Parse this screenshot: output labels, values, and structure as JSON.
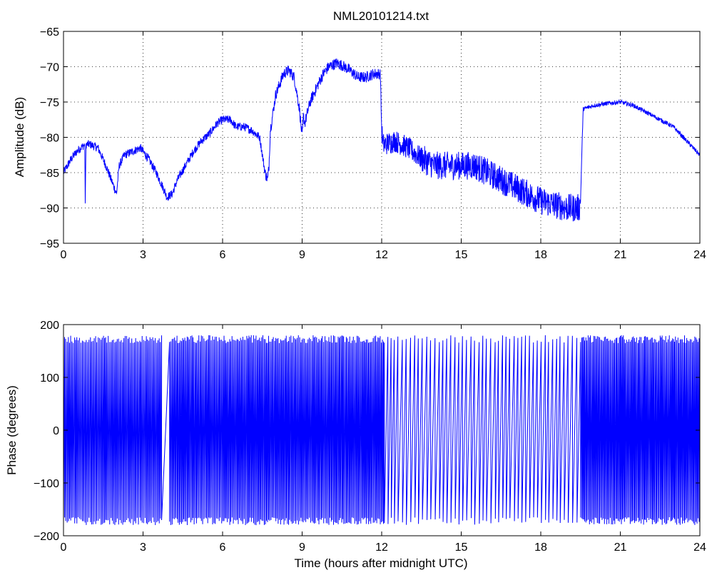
{
  "figure": {
    "title": "NML20101214.txt"
  },
  "chart_data": [
    {
      "type": "line",
      "title": "NML20101214.txt",
      "xlabel": "",
      "ylabel": "Amplitude (dB)",
      "xlim": [
        0,
        24
      ],
      "ylim": [
        -95,
        -65
      ],
      "xticks": [
        0,
        3,
        6,
        9,
        12,
        15,
        18,
        21,
        24
      ],
      "xtick_labels": [
        "0",
        "3",
        "6",
        "9",
        "12",
        "15",
        "18",
        "21",
        "24"
      ],
      "yticks": [
        -95,
        -90,
        -85,
        -80,
        -75,
        -70,
        -65
      ],
      "ytick_labels": [
        "−95",
        "−90",
        "−85",
        "−80",
        "−75",
        "−70",
        "−65"
      ],
      "grid": true,
      "color": "#0000ff",
      "series": [
        {
          "x": [
            0,
            0.3,
            0.5,
            0.8,
            0.82,
            0.85,
            1.0,
            1.3,
            1.6,
            1.9,
            2.0,
            2.1,
            2.3,
            2.6,
            2.9,
            3.2,
            3.5,
            3.8,
            3.9,
            4.1,
            4.3,
            4.6,
            4.9,
            5.2,
            5.5,
            5.8,
            6.0,
            6.3,
            6.5,
            6.8,
            7.1,
            7.4,
            7.6,
            7.7,
            7.75,
            7.8,
            8.0,
            8.3,
            8.5,
            8.7,
            8.9,
            9.0,
            9.05,
            9.1,
            9.3,
            9.6,
            9.8,
            10.0,
            10.3,
            10.5,
            10.8,
            11.1,
            11.4,
            11.7,
            11.95,
            12.0,
            12.05,
            12.1,
            12.5,
            13.0,
            13.5,
            14.0,
            14.5,
            15.0,
            15.5,
            16.0,
            16.5,
            17.0,
            17.5,
            18.0,
            18.5,
            19.0,
            19.45,
            19.5,
            19.55,
            19.6,
            20.0,
            20.5,
            21.0,
            21.5,
            22.0,
            22.5,
            23.0,
            23.5,
            24.0
          ],
          "y": [
            -85,
            -83,
            -82,
            -81,
            -89,
            -81,
            -81,
            -81.5,
            -84,
            -87,
            -88,
            -84,
            -82.5,
            -82,
            -81.5,
            -83,
            -85,
            -87.5,
            -88.5,
            -88,
            -86,
            -84,
            -82,
            -80.5,
            -79.5,
            -78,
            -77.5,
            -77.5,
            -78.5,
            -78.5,
            -79,
            -80,
            -85,
            -86,
            -84,
            -79,
            -74,
            -71,
            -70.5,
            -71.5,
            -76,
            -80,
            -77,
            -78,
            -75,
            -72.5,
            -71,
            -70,
            -69.5,
            -69.8,
            -70.5,
            -71.5,
            -71.5,
            -71,
            -71,
            -79,
            -81,
            -81,
            -80.5,
            -81.5,
            -83,
            -84,
            -84,
            -84,
            -84,
            -85,
            -86,
            -87,
            -88,
            -89,
            -89.5,
            -90,
            -90,
            -89,
            -82,
            -76,
            -75.5,
            -75.2,
            -75,
            -75.5,
            -76.5,
            -77.5,
            -78.5,
            -80.5,
            -82.5
          ]
        }
      ]
    },
    {
      "type": "line",
      "title": "",
      "xlabel": "Time (hours after midnight UTC)",
      "ylabel": "Phase (degrees)",
      "xlim": [
        0,
        24
      ],
      "ylim": [
        -200,
        200
      ],
      "xticks": [
        0,
        3,
        6,
        9,
        12,
        15,
        18,
        21,
        24
      ],
      "xtick_labels": [
        "0",
        "3",
        "6",
        "9",
        "12",
        "15",
        "18",
        "21",
        "24"
      ],
      "yticks": [
        -200,
        -100,
        0,
        100,
        200
      ],
      "ytick_labels": [
        "−200",
        "−100",
        "0",
        "100",
        "200"
      ],
      "grid": false,
      "color": "#0000ff",
      "series": [
        {
          "description_segments": [
            {
              "x_start": 0,
              "x_end": 3.7,
              "wrap_period_hours": 0.09,
              "y_range": [
                -180,
                180
              ]
            },
            {
              "x_start": 3.7,
              "x_end": 4.0,
              "wrap_period_hours": 0.6,
              "y_range": [
                -180,
                180
              ]
            },
            {
              "x_start": 4.0,
              "x_end": 12.1,
              "wrap_period_hours": 0.085,
              "y_range": [
                -180,
                180
              ]
            },
            {
              "x_start": 12.1,
              "x_end": 19.5,
              "wrap_period_hours": 0.28,
              "y_range": [
                -180,
                180
              ]
            },
            {
              "x_start": 19.5,
              "x_end": 24,
              "wrap_period_hours": 0.08,
              "y_range": [
                -180,
                180
              ]
            }
          ]
        }
      ]
    }
  ]
}
